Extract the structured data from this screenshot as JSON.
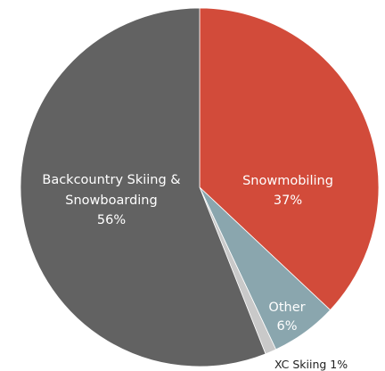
{
  "chart_data": {
    "type": "pie",
    "title": "",
    "slices": [
      {
        "label": "Snowmobiling",
        "value": 37,
        "display": "37%",
        "color": "#d24b3a"
      },
      {
        "label": "Other",
        "value": 6,
        "display": "6%",
        "color": "#8aa6ae"
      },
      {
        "label": "XC Skiing",
        "value": 1,
        "display": "1%",
        "color": "#c9c9c9"
      },
      {
        "label": "Backcountry Skiing & Snowboarding",
        "value": 56,
        "display": "56%",
        "color": "#626262"
      }
    ],
    "labels": {
      "snowmobiling": {
        "name": "Snowmobiling",
        "pct": "37%"
      },
      "other": {
        "name": "Other",
        "pct": "6%"
      },
      "xc": {
        "text": "XC Skiing 1%"
      },
      "backcountry": {
        "line1": "Backcountry Skiing &",
        "line2": "Snowboarding",
        "pct": "56%"
      }
    },
    "start_angle": "12 o'clock",
    "direction": "clockwise",
    "legend": "none"
  }
}
